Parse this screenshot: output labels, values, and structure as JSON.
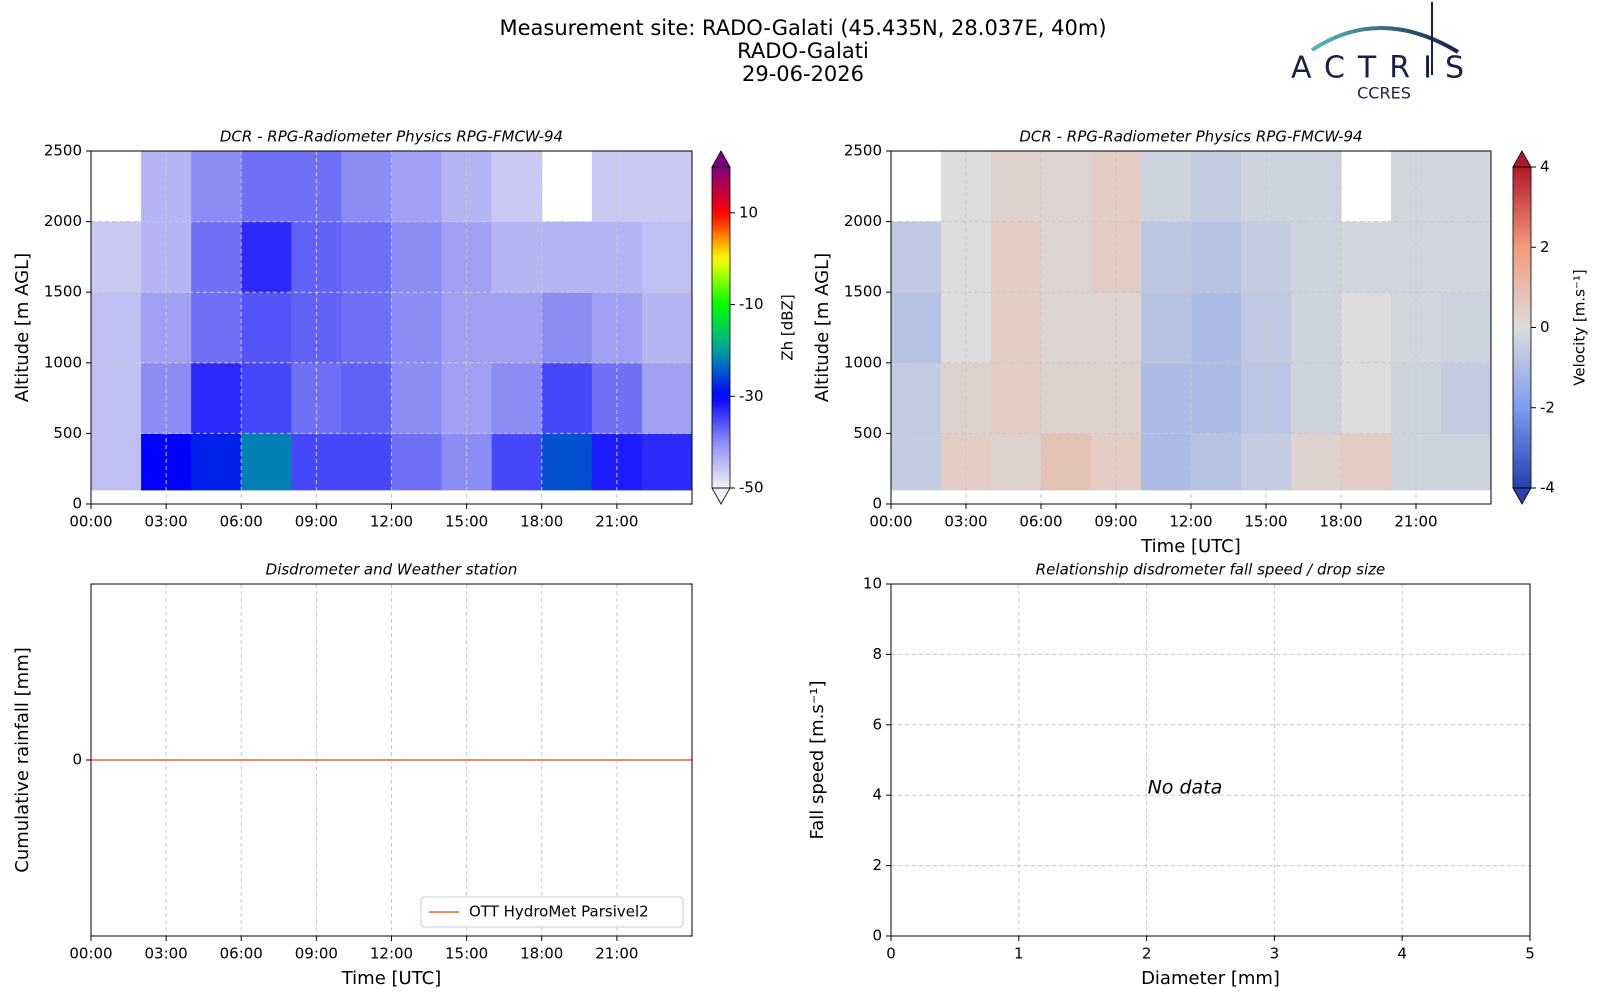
{
  "header": {
    "title": "Measurement site: RADO-Galati (45.435N, 28.037E, 40m)",
    "site": "RADO-Galati",
    "date": "29-06-2026"
  },
  "logo": {
    "name": "ACTRIS",
    "subtitle": "CCRES"
  },
  "chart_data": [
    {
      "type": "heatmap",
      "title": "DCR - RPG-Radiometer Physics RPG-FMCW-94",
      "ylabel": "Altitude [m AGL]",
      "xlim": [
        0,
        24
      ],
      "xticks": [
        {
          "value": 0,
          "label": "00:00"
        },
        {
          "value": 3,
          "label": "03:00"
        },
        {
          "value": 6,
          "label": "06:00"
        },
        {
          "value": 9,
          "label": "09:00"
        },
        {
          "value": 12,
          "label": "12:00"
        },
        {
          "value": 15,
          "label": "15:00"
        },
        {
          "value": 18,
          "label": "18:00"
        },
        {
          "value": 21,
          "label": "21:00"
        }
      ],
      "ylim": [
        0,
        2500
      ],
      "yticks": [
        0,
        500,
        1000,
        1500,
        2000,
        2500
      ],
      "grid": true,
      "x_bins": [
        0,
        2,
        4,
        6,
        8,
        10,
        12,
        14,
        16,
        18,
        20,
        22,
        24
      ],
      "y_bins": [
        100,
        500,
        1000,
        1500,
        2000,
        2500
      ],
      "z": [
        [
          -45,
          -30,
          -28,
          -22,
          -35,
          -35,
          -38,
          -40,
          -35,
          -25,
          -32,
          -33
        ],
        [
          -45,
          -40,
          -33,
          -35,
          -38,
          -37,
          -40,
          -42,
          -40,
          -35,
          -38,
          -42
        ],
        [
          -45,
          -42,
          -38,
          -36,
          -37,
          -38,
          -40,
          -42,
          -42,
          -40,
          -42,
          -44
        ],
        [
          -46,
          -44,
          -38,
          -33,
          -37,
          -38,
          -40,
          -42,
          -44,
          -44,
          -44,
          -45
        ],
        [
          null,
          -44,
          -40,
          -38,
          -38,
          -40,
          -42,
          -44,
          -46,
          null,
          -46,
          -46
        ]
      ],
      "colorbar_label": "Zh [dBZ]",
      "cblim": [
        -50,
        20
      ],
      "cbticks": [
        -50,
        -30,
        -10,
        10
      ],
      "colorscale": [
        {
          "value": -50,
          "color": "#f2f2f2"
        },
        {
          "value": -40,
          "color": "#8c8cf5"
        },
        {
          "value": -30,
          "color": "#0000ff"
        },
        {
          "value": -20,
          "color": "#00a0a0"
        },
        {
          "value": -10,
          "color": "#00ff00"
        },
        {
          "value": 0,
          "color": "#ffff00"
        },
        {
          "value": 10,
          "color": "#ff0000"
        },
        {
          "value": 20,
          "color": "#800080"
        }
      ]
    },
    {
      "type": "heatmap",
      "title": "DCR - RPG-Radiometer Physics RPG-FMCW-94",
      "ylabel": "Altitude [m AGL]",
      "xlabel": "Time [UTC]",
      "xlim": [
        0,
        24
      ],
      "xticks": [
        {
          "value": 0,
          "label": "00:00"
        },
        {
          "value": 3,
          "label": "03:00"
        },
        {
          "value": 6,
          "label": "06:00"
        },
        {
          "value": 9,
          "label": "09:00"
        },
        {
          "value": 12,
          "label": "12:00"
        },
        {
          "value": 15,
          "label": "15:00"
        },
        {
          "value": 18,
          "label": "18:00"
        },
        {
          "value": 21,
          "label": "21:00"
        }
      ],
      "ylim": [
        0,
        2500
      ],
      "yticks": [
        0,
        500,
        1000,
        1500,
        2000,
        2500
      ],
      "grid": true,
      "x_bins": [
        0,
        2,
        4,
        6,
        8,
        10,
        12,
        14,
        16,
        18,
        20,
        22,
        24
      ],
      "y_bins": [
        100,
        500,
        1000,
        1500,
        2000,
        2500
      ],
      "z": [
        [
          -0.5,
          0.5,
          0.3,
          0.8,
          0.5,
          -1,
          -0.8,
          -0.5,
          0.3,
          0.5,
          -0.3,
          -0.3
        ],
        [
          -0.5,
          0.3,
          0.5,
          0.3,
          0.3,
          -1,
          -1,
          -0.7,
          -0.3,
          0,
          -0.3,
          -0.5
        ],
        [
          -0.8,
          0,
          0.5,
          0.2,
          0.2,
          -0.8,
          -1,
          -0.6,
          -0.3,
          0,
          -0.2,
          -0.3
        ],
        [
          -0.6,
          0,
          0.5,
          0.2,
          0.5,
          -0.7,
          -0.8,
          -0.5,
          -0.3,
          -0.2,
          -0.2,
          -0.2
        ],
        [
          null,
          0,
          0.3,
          0.2,
          0.5,
          -0.3,
          -0.5,
          -0.3,
          -0.3,
          null,
          -0.2,
          -0.2
        ]
      ],
      "colorbar_label": "Velocity [m.s⁻¹]",
      "cblim": [
        -4,
        4
      ],
      "cbticks": [
        -4,
        -2,
        0,
        2,
        4
      ],
      "colorscale": [
        {
          "value": -4,
          "color": "#2a3fb0"
        },
        {
          "value": -2,
          "color": "#7b9cf0"
        },
        {
          "value": 0,
          "color": "#dcdcdc"
        },
        {
          "value": 2,
          "color": "#f39a7c"
        },
        {
          "value": 4,
          "color": "#b2182b"
        }
      ]
    },
    {
      "type": "line",
      "title": "Disdrometer and Weather station",
      "ylabel": "Cumulative rainfall [mm]",
      "xlabel": "Time [UTC]",
      "xlim": [
        0,
        24
      ],
      "xticks": [
        {
          "value": 0,
          "label": "00:00"
        },
        {
          "value": 3,
          "label": "03:00"
        },
        {
          "value": 6,
          "label": "06:00"
        },
        {
          "value": 9,
          "label": "09:00"
        },
        {
          "value": 12,
          "label": "12:00"
        },
        {
          "value": 15,
          "label": "15:00"
        },
        {
          "value": 18,
          "label": "18:00"
        },
        {
          "value": 21,
          "label": "21:00"
        }
      ],
      "ylim": [
        -1,
        1
      ],
      "yticks": [
        0
      ],
      "grid": true,
      "legend": "lower right",
      "x": [
        0,
        24
      ],
      "series": [
        {
          "name": "OTT HydroMet Parsivel2",
          "color": "#f08a5d",
          "values": [
            0,
            0
          ]
        }
      ]
    },
    {
      "type": "scatter",
      "title": "Relationship disdrometer fall speed / drop size",
      "xlabel": "Diameter [mm]",
      "ylabel": "Fall speed [m.s⁻¹]",
      "xlim": [
        0,
        5
      ],
      "xticks": [
        0,
        1,
        2,
        3,
        4,
        5
      ],
      "ylim": [
        0,
        10
      ],
      "yticks": [
        0,
        2,
        4,
        6,
        8,
        10
      ],
      "grid": true,
      "x": [],
      "values": [],
      "annotation": "No data"
    }
  ]
}
